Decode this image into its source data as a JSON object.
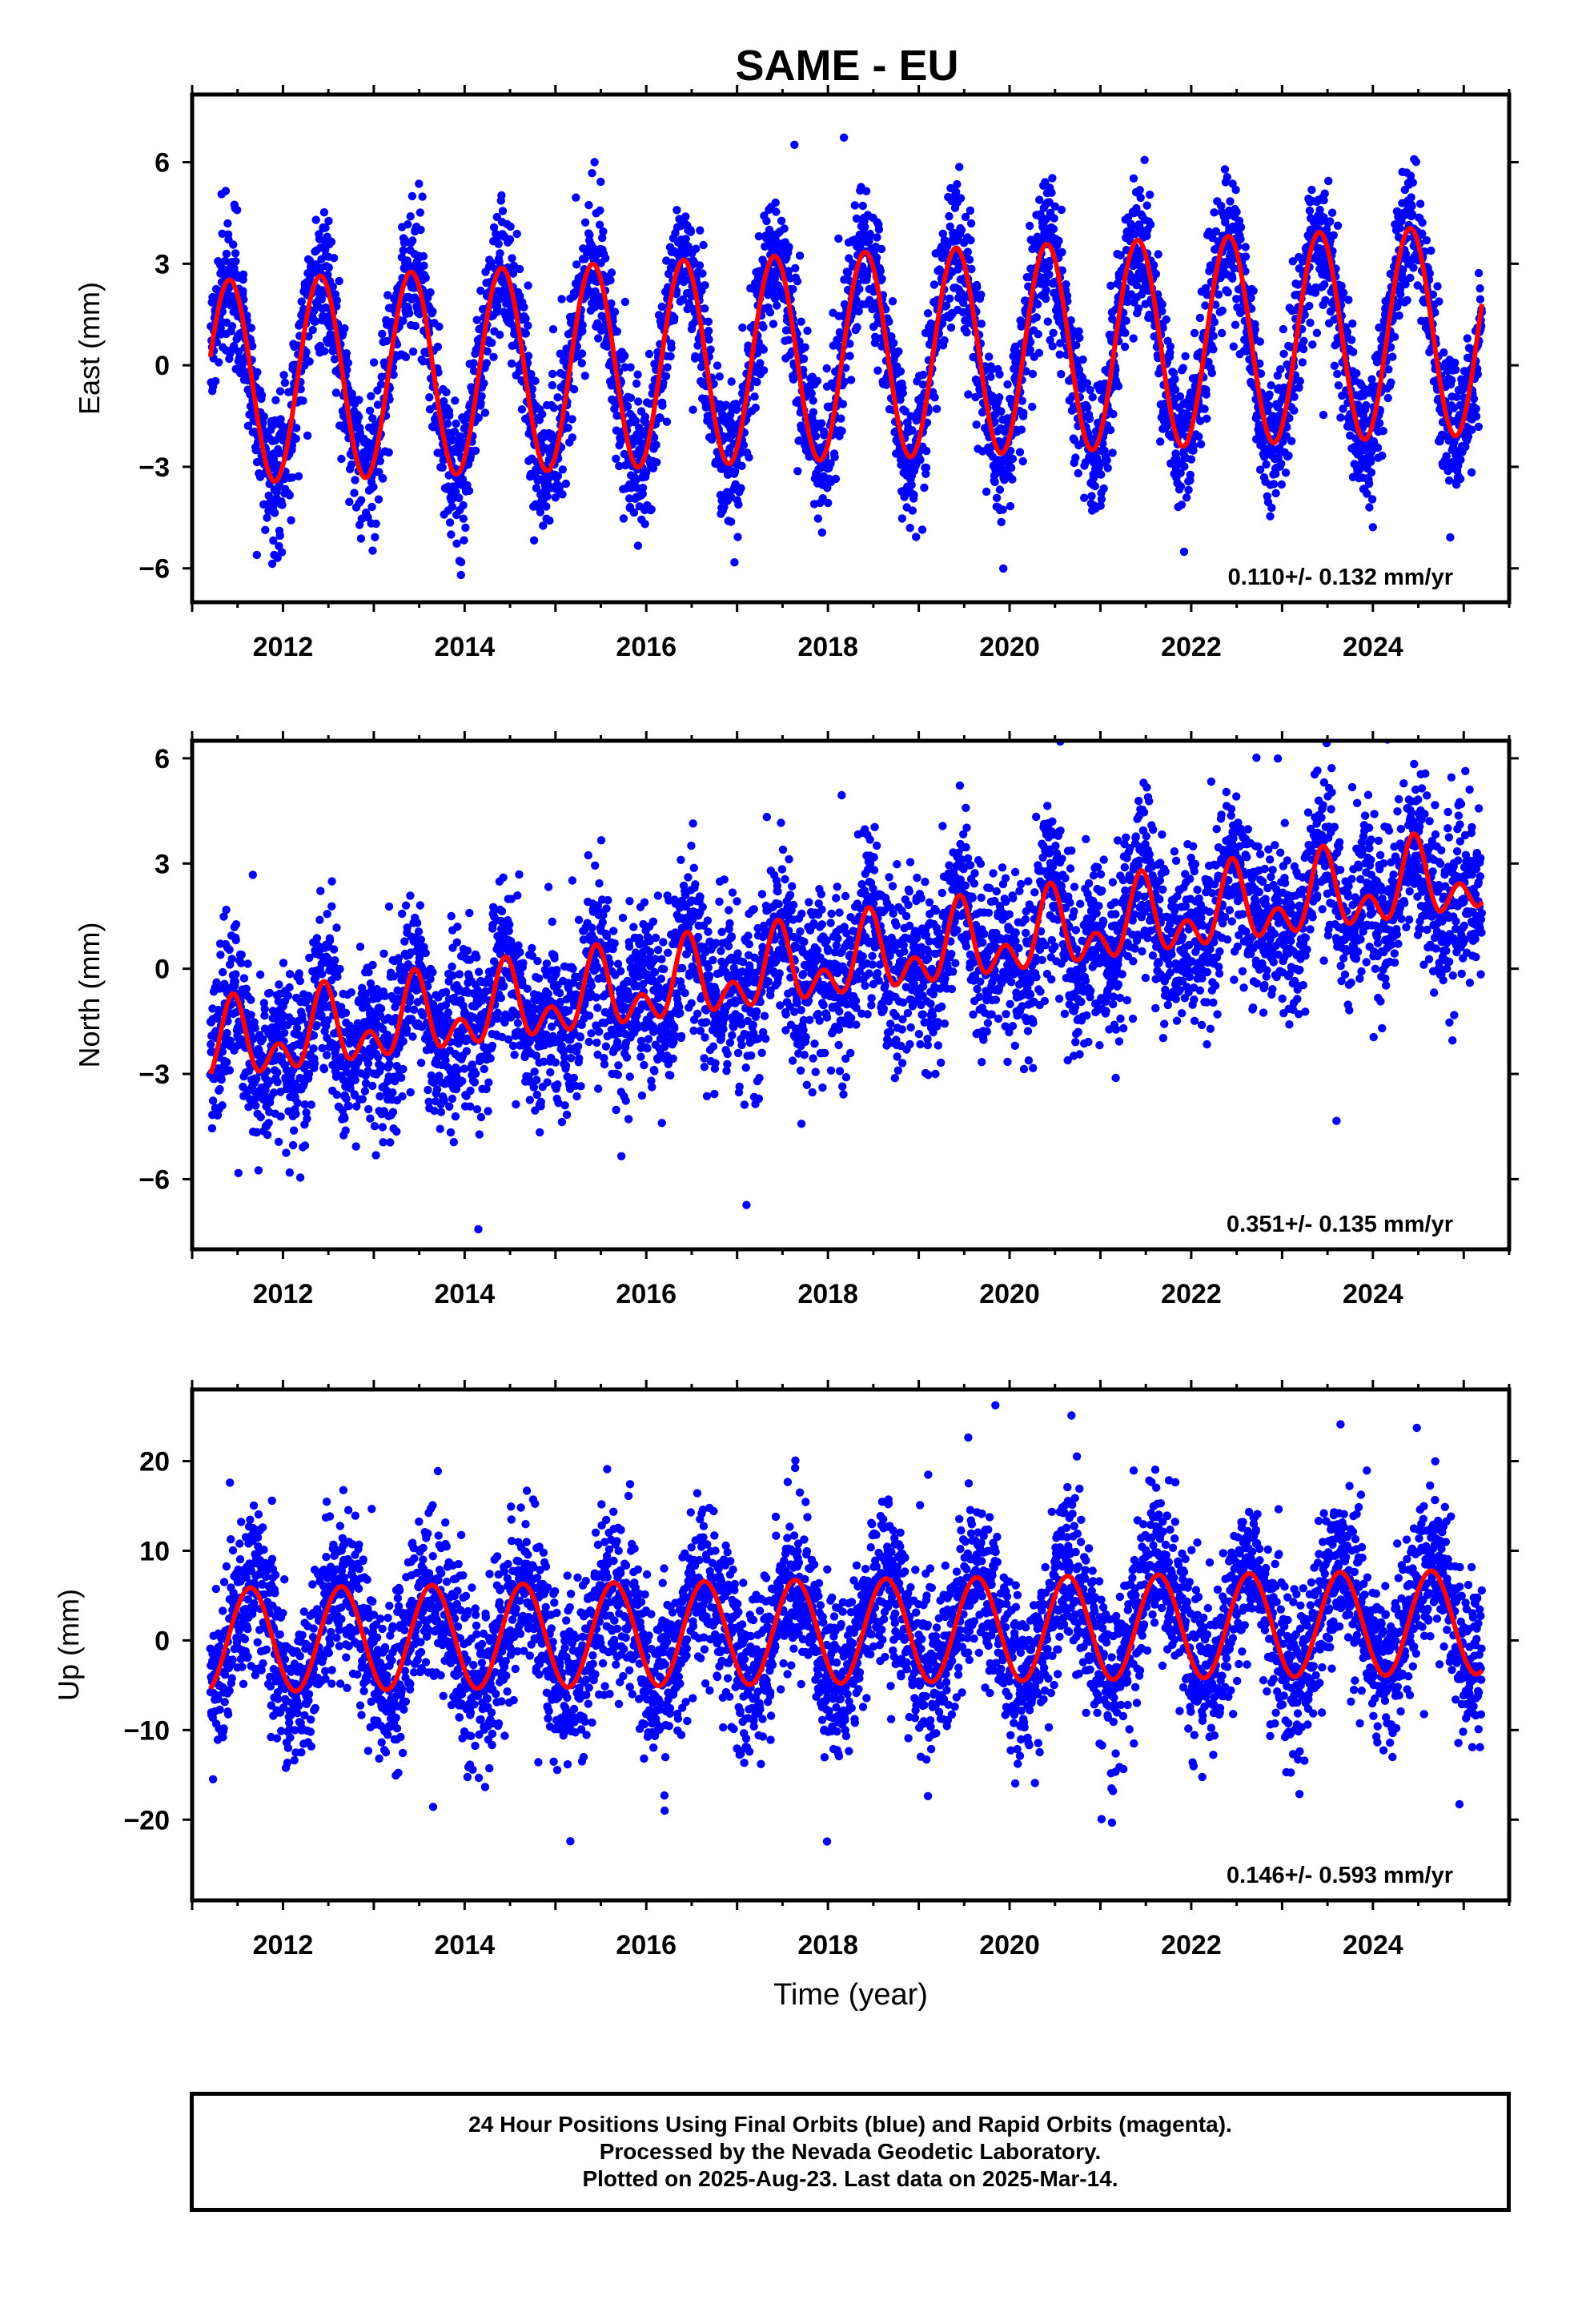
{
  "title": "SAME - EU",
  "colors": {
    "points": "#0000ff",
    "fit": "#ff0000",
    "frame": "#000000"
  },
  "chart_data": [
    {
      "type": "scatter",
      "name": "east",
      "ylabel": "East (mm)",
      "xlim": [
        2011.0,
        2025.5
      ],
      "ylim": [
        -7,
        8
      ],
      "yticks": [
        -6,
        -3,
        0,
        3,
        6
      ],
      "xticks": [
        2012,
        2014,
        2016,
        2018,
        2020,
        2022,
        2024
      ],
      "rate_label": "0.110+/- 0.132 mm/yr",
      "data_range": [
        2011.2,
        2025.2
      ],
      "approx_points": {
        "sampling": "daily",
        "amplitude": 3.0,
        "phase_peak_year_fraction": 0.42,
        "noise_sd": 1.0,
        "trend_mm_per_yr": 0.11
      },
      "fit": {
        "trend_mm_per_yr": 0.11,
        "annual_amplitude_start": 3.0,
        "annual_amplitude_end": 3.1,
        "offset_mm": -0.5,
        "peak_fraction": 0.41
      }
    },
    {
      "type": "scatter",
      "name": "north",
      "ylabel": "North (mm)",
      "xlim": [
        2011.0,
        2025.5
      ],
      "ylim": [
        -8,
        6.5
      ],
      "yticks": [
        -6,
        -3,
        0,
        3,
        6
      ],
      "xticks": [
        2012,
        2014,
        2016,
        2018,
        2020,
        2022,
        2024
      ],
      "rate_label": "0.351+/- 0.135 mm/yr",
      "data_range": [
        2011.2,
        2025.2
      ],
      "approx_points": {
        "sampling": "daily",
        "noise_sd": 1.2
      },
      "fit": {
        "trend_mm_per_yr": 0.351,
        "start_value_mm": -2.3,
        "annual_amplitude": 0.8,
        "semiannual_amplitude": 0.7,
        "peak_fraction": 0.45
      }
    },
    {
      "type": "scatter",
      "name": "up",
      "ylabel": "Up (mm)",
      "xlabel": "Time (year)",
      "xlim": [
        2011.0,
        2025.5
      ],
      "ylim": [
        -29,
        28
      ],
      "yticks": [
        -20,
        -10,
        0,
        10,
        20
      ],
      "xticks": [
        2012,
        2014,
        2016,
        2018,
        2020,
        2022,
        2024
      ],
      "rate_label": "0.146+/- 0.593 mm/yr",
      "data_range": [
        2011.2,
        2025.2
      ],
      "approx_points": {
        "sampling": "daily",
        "noise_sd": 4.5
      },
      "fit": {
        "trend_mm_per_yr": 0.146,
        "offset_mm": 0.0,
        "annual_amplitude": 5.8,
        "peak_fraction": 0.64
      }
    }
  ],
  "caption": {
    "line1": "24 Hour Positions Using Final Orbits (blue) and Rapid Orbits (magenta).",
    "line2": "Processed by the Nevada Geodetic Laboratory.",
    "line3": "Plotted on 2025-Aug-23. Last data on 2025-Mar-14."
  }
}
